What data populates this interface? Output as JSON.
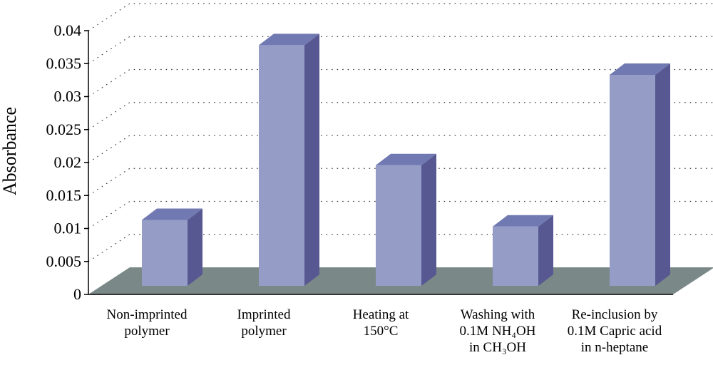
{
  "chart_data": {
    "type": "bar",
    "style": "3d",
    "ylabel": "Absorbance",
    "xlabel": "",
    "ylim": [
      0,
      0.04
    ],
    "yticks": [
      "0",
      "0.005",
      "0.01",
      "0.015",
      "0.02",
      "0.025",
      "0.03",
      "0.035",
      "0.04"
    ],
    "grid": true,
    "categories": [
      [
        "Non-imprinted",
        "polymer"
      ],
      [
        "Imprinted",
        "polymer"
      ],
      [
        "Heating at",
        "150°C"
      ],
      [
        "Washing with",
        "0.1M NH₄OH",
        "in CH₃OH"
      ],
      [
        "Re-inclusion by",
        "0.1M Capric acid",
        "in n-heptane"
      ]
    ],
    "values": [
      0.01,
      0.0365,
      0.0183,
      0.009,
      0.032
    ],
    "colors": {
      "bar_front": "#959dc7",
      "bar_side": "#575891",
      "bar_top": "#7079b1",
      "floor": "#7a8887"
    }
  }
}
